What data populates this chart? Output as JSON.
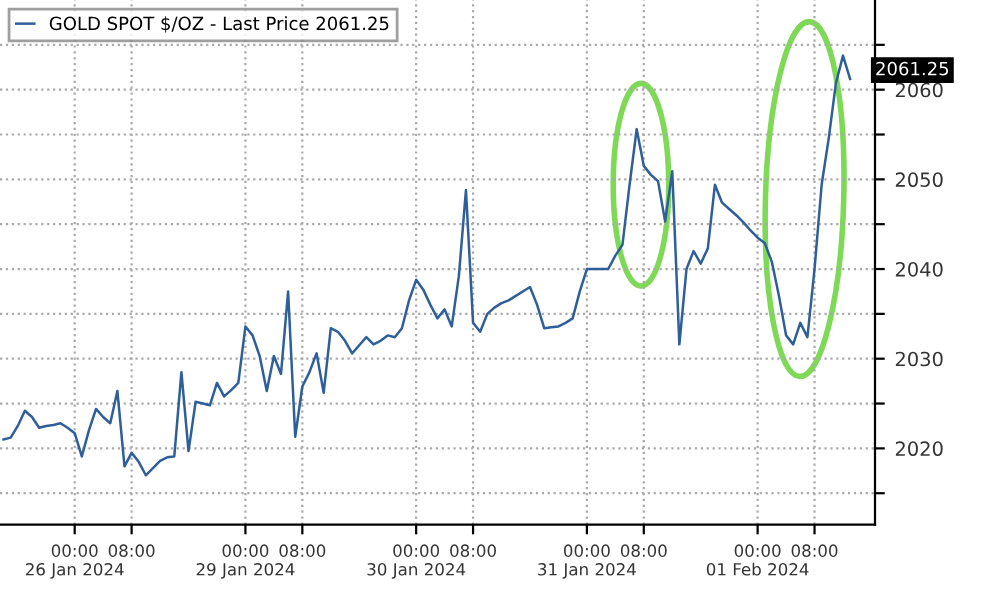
{
  "chart_data": {
    "type": "line",
    "categories": [
      null,
      null,
      null,
      null,
      null,
      null,
      null,
      null,
      null,
      null,
      "00:00\n26 Jan 2024",
      null,
      null,
      null,
      null,
      null,
      null,
      null,
      "08:00",
      null,
      null,
      null,
      null,
      null,
      null,
      null,
      null,
      null,
      null,
      null,
      null,
      null,
      null,
      null,
      "00:00\n29 Jan 2024",
      null,
      null,
      null,
      null,
      null,
      null,
      null,
      "08:00",
      null,
      null,
      null,
      null,
      null,
      null,
      null,
      null,
      null,
      null,
      null,
      null,
      null,
      null,
      null,
      "00:00\n30 Jan 2024",
      null,
      null,
      null,
      null,
      null,
      null,
      null,
      "08:00",
      null,
      null,
      null,
      null,
      null,
      null,
      null,
      null,
      null,
      null,
      null,
      null,
      null,
      null,
      null,
      "00:00\n31 Jan 2024",
      null,
      null,
      null,
      null,
      null,
      null,
      null,
      "08:00",
      null,
      null,
      null,
      null,
      null,
      null,
      null,
      null,
      null,
      null,
      null,
      null,
      null,
      null,
      null,
      "00:00\n01 Feb 2024",
      null,
      null,
      null,
      null,
      null,
      null,
      null,
      "08:00",
      null,
      null,
      null,
      null,
      null,
      null,
      null,
      null
    ],
    "series": [
      {
        "name": "GOLD SPOT $/OZ - Last Price 2061.25",
        "color": "#2f5f9a",
        "values": [
          2021.0,
          2021.2,
          2022.5,
          2024.2,
          2023.5,
          2022.3,
          2022.5,
          2022.6,
          2022.8,
          2022.3,
          2021.7,
          2019.1,
          2022.0,
          2024.4,
          2023.5,
          2022.8,
          2026.4,
          2018.0,
          2019.5,
          2018.5,
          2017.0,
          2017.8,
          2018.6,
          2019.0,
          2019.1,
          2028.5,
          2019.7,
          2025.2,
          2025.0,
          2024.8,
          2027.3,
          2025.8,
          2026.5,
          2027.3,
          2033.6,
          2032.6,
          2030.3,
          2026.4,
          2030.3,
          2028.3,
          2037.5,
          2021.3,
          2026.9,
          2028.5,
          2030.6,
          2026.2,
          2033.4,
          2033.0,
          2032.0,
          2030.6,
          2031.5,
          2032.4,
          2031.6,
          2032.0,
          2032.6,
          2032.4,
          2033.4,
          2036.5,
          2038.8,
          2037.7,
          2036.0,
          2034.5,
          2035.5,
          2033.6,
          2039.2,
          2048.8,
          2034.0,
          2033.0,
          2035.0,
          2035.7,
          2036.2,
          2036.5,
          2037.0,
          2037.5,
          2038.0,
          2036.0,
          2033.4,
          2033.5,
          2033.6,
          2034.0,
          2034.5,
          2037.5,
          2040.0,
          2040.0,
          2040.0,
          2040.0,
          2041.5,
          2042.7,
          2049.4,
          2055.6,
          2051.5,
          2050.5,
          2049.8,
          2045.3,
          2050.9,
          2031.6,
          2040.0,
          2042.0,
          2040.6,
          2042.3,
          2049.4,
          2047.4,
          2046.7,
          2046.0,
          2045.2,
          2044.3,
          2043.5,
          2042.9,
          2040.8,
          2037.0,
          2032.6,
          2031.6,
          2034.0,
          2032.4,
          2040.0,
          2049.4,
          2054.6,
          2060.7,
          2063.8,
          2061.2,
          null,
          null,
          null
        ]
      }
    ],
    "ylim": [
      2011.5,
      2070
    ],
    "yticks": [
      {
        "value": 2015,
        "label": null
      },
      2020,
      {
        "value": 2025,
        "label": null
      },
      2030,
      {
        "value": 2035,
        "label": null
      },
      2040,
      {
        "value": 2045,
        "label": null
      },
      2050,
      {
        "value": 2055,
        "label": null
      },
      2060,
      {
        "value": 2065,
        "label": null
      }
    ],
    "annotations": [
      "2061.25"
    ],
    "grid": true,
    "legend": "top left",
    "marker": "none",
    "line_style": "solid"
  }
}
